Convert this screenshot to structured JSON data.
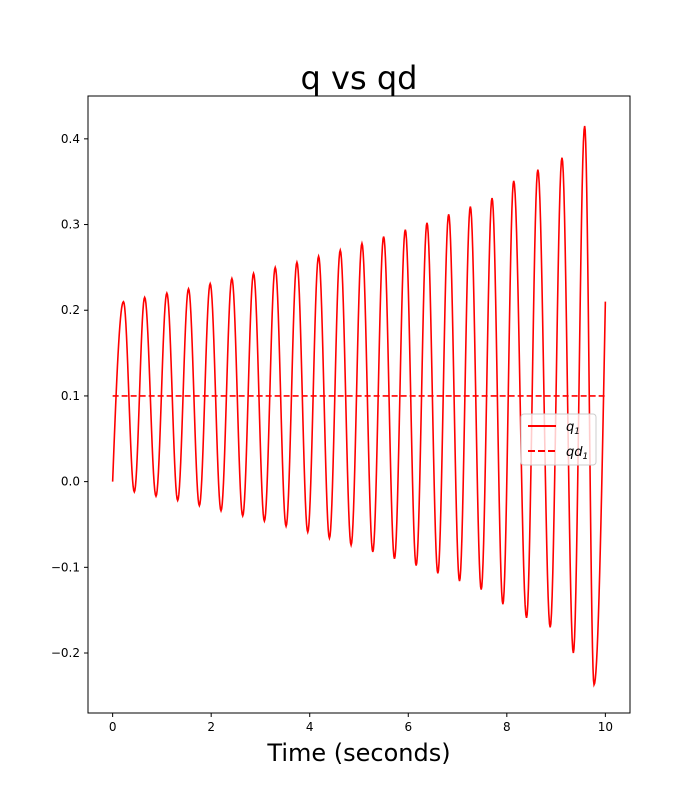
{
  "chart_data": {
    "type": "line",
    "title": "q vs qd",
    "xlabel": "Time (seconds)",
    "ylabel": "",
    "xlim": [
      -0.5,
      10.5
    ],
    "ylim": [
      -0.27,
      0.45
    ],
    "x_ticks": [
      0,
      2,
      4,
      6,
      8,
      10
    ],
    "x_tick_labels": [
      "0",
      "2",
      "4",
      "6",
      "8",
      "10"
    ],
    "y_ticks": [
      -0.2,
      -0.1,
      0.0,
      0.1,
      0.2,
      0.3,
      0.4
    ],
    "y_tick_labels": [
      "−0.2",
      "−0.1",
      "0.0",
      "0.1",
      "0.2",
      "0.3",
      "0.4"
    ],
    "grid": false,
    "legend_position": "right",
    "series": [
      {
        "name": "q",
        "name_subscript": "1",
        "color": "#ff0000",
        "style": "solid",
        "peaks": [
          {
            "x": 0.22,
            "y": 0.21
          },
          {
            "x": 0.65,
            "y": 0.215
          },
          {
            "x": 1.1,
            "y": 0.22
          },
          {
            "x": 1.54,
            "y": 0.225
          },
          {
            "x": 1.98,
            "y": 0.231
          },
          {
            "x": 2.42,
            "y": 0.237
          },
          {
            "x": 2.86,
            "y": 0.243
          },
          {
            "x": 3.3,
            "y": 0.25
          },
          {
            "x": 3.74,
            "y": 0.256
          },
          {
            "x": 4.18,
            "y": 0.263
          },
          {
            "x": 4.62,
            "y": 0.27
          },
          {
            "x": 5.06,
            "y": 0.278
          },
          {
            "x": 5.5,
            "y": 0.286
          },
          {
            "x": 5.94,
            "y": 0.294
          },
          {
            "x": 6.38,
            "y": 0.302
          },
          {
            "x": 6.82,
            "y": 0.312
          },
          {
            "x": 7.26,
            "y": 0.321
          },
          {
            "x": 7.7,
            "y": 0.331
          },
          {
            "x": 8.14,
            "y": 0.351
          },
          {
            "x": 8.63,
            "y": 0.364
          },
          {
            "x": 9.12,
            "y": 0.378
          },
          {
            "x": 9.58,
            "y": 0.415
          }
        ],
        "troughs": [
          {
            "x": 0.44,
            "y": -0.012
          },
          {
            "x": 0.88,
            "y": -0.017
          },
          {
            "x": 1.32,
            "y": -0.022
          },
          {
            "x": 1.76,
            "y": -0.028
          },
          {
            "x": 2.2,
            "y": -0.034
          },
          {
            "x": 2.64,
            "y": -0.04
          },
          {
            "x": 3.08,
            "y": -0.046
          },
          {
            "x": 3.52,
            "y": -0.052
          },
          {
            "x": 3.96,
            "y": -0.059
          },
          {
            "x": 4.4,
            "y": -0.066
          },
          {
            "x": 4.84,
            "y": -0.074
          },
          {
            "x": 5.28,
            "y": -0.082
          },
          {
            "x": 5.72,
            "y": -0.09
          },
          {
            "x": 6.16,
            "y": -0.098
          },
          {
            "x": 6.6,
            "y": -0.107
          },
          {
            "x": 7.04,
            "y": -0.116
          },
          {
            "x": 7.48,
            "y": -0.126
          },
          {
            "x": 7.92,
            "y": -0.143
          },
          {
            "x": 8.4,
            "y": -0.159
          },
          {
            "x": 8.88,
            "y": -0.17
          },
          {
            "x": 9.35,
            "y": -0.2
          },
          {
            "x": 9.77,
            "y": -0.237
          }
        ],
        "start": {
          "x": 0.0,
          "y": 0.0
        },
        "end": {
          "x": 10.0,
          "y": 0.21
        }
      },
      {
        "name": "qd",
        "name_subscript": "1",
        "color": "#ff0000",
        "style": "dashed",
        "x": [
          0.0,
          10.0
        ],
        "y": [
          0.1,
          0.1
        ]
      }
    ]
  }
}
